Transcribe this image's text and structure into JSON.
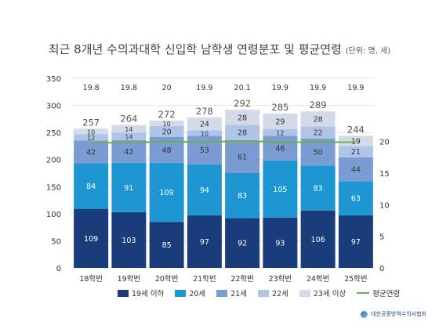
{
  "title": "최근 8개년 수의과대학 신입학 남학생 연령분포 및 평균연령",
  "unit_note": "(단위: 명, 세)",
  "org_name": "대한공중방역수의사협회",
  "chart_data": {
    "type": "bar",
    "stacked": true,
    "categories": [
      "18학번",
      "19학번",
      "20학번",
      "21학번",
      "22학번",
      "23학번",
      "24학번",
      "25학번"
    ],
    "series": [
      {
        "name": "19세 이하",
        "color": "#1a3c7a",
        "values": [
          109,
          103,
          85,
          97,
          92,
          93,
          106,
          97
        ]
      },
      {
        "name": "20세",
        "color": "#1e96d2",
        "values": [
          84,
          91,
          109,
          94,
          83,
          105,
          83,
          63
        ]
      },
      {
        "name": "21세",
        "color": "#7b9cd3",
        "values": [
          42,
          42,
          48,
          53,
          61,
          46,
          50,
          44
        ]
      },
      {
        "name": "22세",
        "color": "#b0c4e8",
        "values": [
          12,
          14,
          20,
          10,
          28,
          12,
          22,
          21
        ]
      },
      {
        "name": "23세 이상",
        "color": "#d3dbe8",
        "values": [
          10,
          14,
          10,
          24,
          28,
          29,
          28,
          19
        ]
      }
    ],
    "totals": [
      257,
      264,
      272,
      278,
      292,
      285,
      289,
      244
    ],
    "line": {
      "name": "평균연령",
      "color": "#6ab04c",
      "values": [
        19.8,
        19.8,
        20,
        19.9,
        20.1,
        19.9,
        19.9,
        19.9
      ]
    },
    "y_left": {
      "min": 0,
      "max": 350,
      "ticks": [
        0,
        50,
        100,
        150,
        200,
        250,
        300,
        350
      ]
    },
    "y_right": {
      "min": 0,
      "max": 30,
      "ticks": [
        0,
        5,
        10,
        15,
        20
      ]
    },
    "grid": true,
    "legend_position": "bottom"
  }
}
